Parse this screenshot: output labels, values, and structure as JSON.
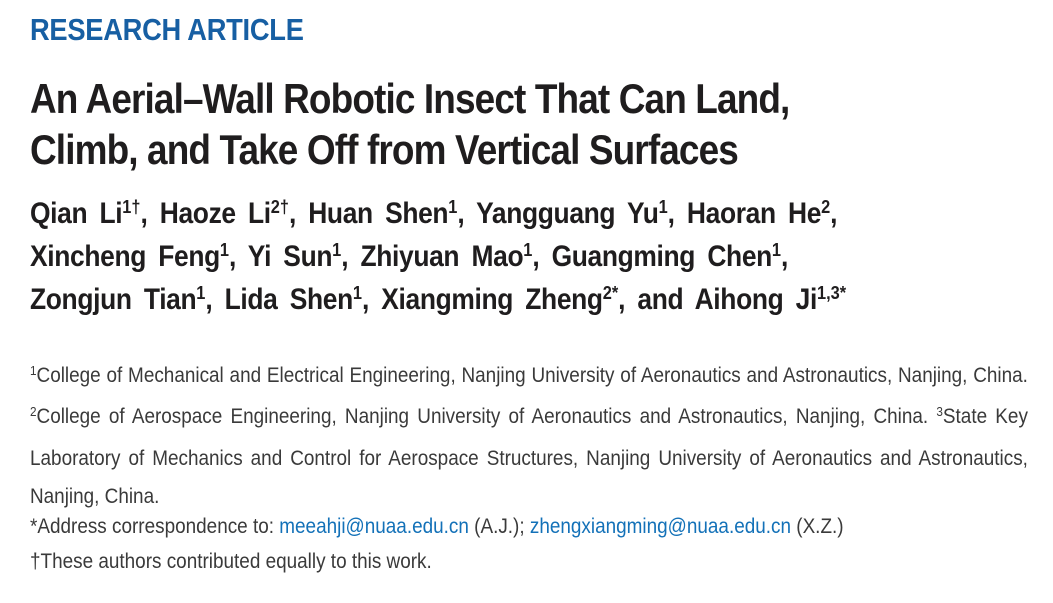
{
  "colors": {
    "kicker_blue": "#175fa3",
    "link_blue": "#1371b8",
    "title_black": "#1f1d1e",
    "body_gray": "#3a3a3a"
  },
  "article": {
    "kicker": "RESEARCH ARTICLE",
    "title_lines": [
      "An Aerial–Wall Robotic Insect That Can Land,",
      "Climb, and Take Off from Vertical Surfaces"
    ],
    "author_lines": [
      {
        "items": [
          {
            "name": "Qian Li",
            "sup": "1†"
          },
          {
            "name": "Haoze Li",
            "sup": "2†"
          },
          {
            "name": "Huan Shen",
            "sup": "1"
          },
          {
            "name": "Yangguang Yu",
            "sup": "1"
          },
          {
            "name": "Haoran He",
            "sup": "2"
          }
        ],
        "line_end": ","
      },
      {
        "items": [
          {
            "name": "Xincheng Feng",
            "sup": "1"
          },
          {
            "name": "Yi Sun",
            "sup": "1"
          },
          {
            "name": "Zhiyuan Mao",
            "sup": "1"
          },
          {
            "name": "Guangming Chen",
            "sup": "1"
          }
        ],
        "line_end": ","
      },
      {
        "items": [
          {
            "name": "Zongjun Tian",
            "sup": "1"
          },
          {
            "name": "Lida Shen",
            "sup": "1"
          },
          {
            "name": "Xiangming Zheng",
            "sup": "2*"
          },
          {
            "name": "and Aihong Ji",
            "sup": "1,3*"
          }
        ],
        "line_end": ""
      }
    ],
    "affiliations": [
      {
        "sup": "1",
        "text": "College of Mechanical and Electrical Engineering, Nanjing University of Aeronautics and Astronautics, Nanjing, China. "
      },
      {
        "sup": "2",
        "text": "College of Aerospace Engineering, Nanjing University of Aeronautics and Astronautics, Nanjing, China. "
      },
      {
        "sup": "3",
        "text": "State Key Laboratory of Mechanics and Control for Aerospace Structures, Nanjing University of Aeronautics and Astronautics, Nanjing, China."
      }
    ],
    "correspondence": {
      "segments": [
        {
          "text": "*Address correspondence to: "
        },
        {
          "link": "meeahji@nuaa.edu.cn",
          "name": "email-link-aj"
        },
        {
          "text": " (A.J.); "
        },
        {
          "link": "zhengxiangming@nuaa.edu.cn",
          "name": "email-link-xz"
        },
        {
          "text": " (X.Z.)"
        }
      ]
    },
    "equal_contribution": "†These authors contributed equally to this work."
  }
}
